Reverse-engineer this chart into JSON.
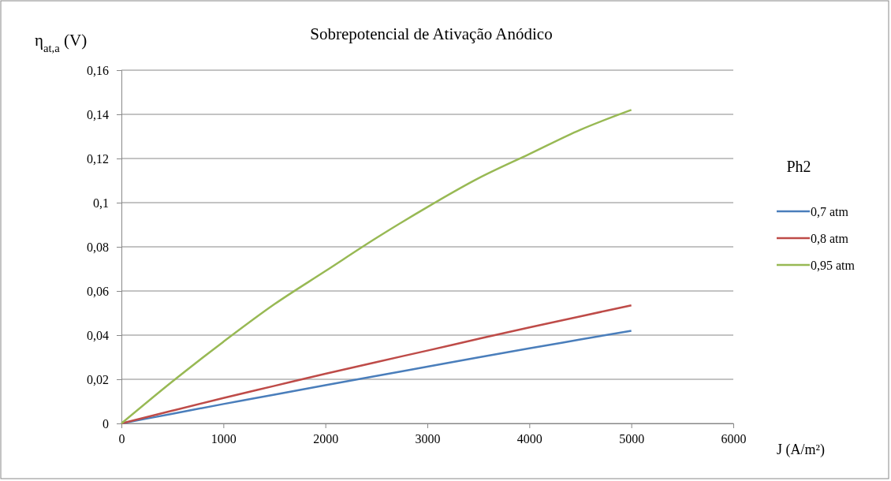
{
  "chart_data": {
    "type": "line",
    "title": "Sobrepotencial de Ativação Anódico",
    "xlabel": "J (A/m²)",
    "ylabel": "η$_{at,a}$ (V)",
    "legend_title": "Ph2",
    "legend": "right",
    "x": [
      0,
      500,
      1000,
      1500,
      2000,
      2500,
      3000,
      3500,
      4000,
      4500,
      5000
    ],
    "xlim": [
      0,
      6000
    ],
    "xticks": [
      0,
      1000,
      2000,
      3000,
      4000,
      5000,
      6000
    ],
    "ylim": [
      0,
      0.16
    ],
    "yticks": [
      {
        "value": 0,
        "label": "0"
      },
      {
        "value": 0.02,
        "label": "0,02"
      },
      {
        "value": 0.04,
        "label": "0,04"
      },
      {
        "value": 0.06,
        "label": "0,06"
      },
      {
        "value": 0.08,
        "label": "0,08"
      },
      {
        "value": 0.1,
        "label": "0,1"
      },
      {
        "value": 0.12,
        "label": "0,12"
      },
      {
        "value": 0.14,
        "label": "0,14"
      },
      {
        "value": 0.16,
        "label": "0,16"
      }
    ],
    "grid": "y",
    "marker": "none",
    "series": [
      {
        "name": "0,7 atm",
        "color": "#4a7ebb",
        "values": [
          0,
          0.0044,
          0.0088,
          0.013,
          0.0173,
          0.0215,
          0.0257,
          0.0299,
          0.034,
          0.038,
          0.042
        ]
      },
      {
        "name": "0,8 atm",
        "color": "#be4b48",
        "values": [
          0,
          0.0058,
          0.0115,
          0.017,
          0.0225,
          0.0278,
          0.033,
          0.0383,
          0.0435,
          0.0485,
          0.0535
        ]
      },
      {
        "name": "0,95 atm",
        "color": "#98b954",
        "values": [
          0,
          0.019,
          0.037,
          0.054,
          0.069,
          0.084,
          0.098,
          0.111,
          0.122,
          0.133,
          0.142
        ]
      }
    ]
  }
}
